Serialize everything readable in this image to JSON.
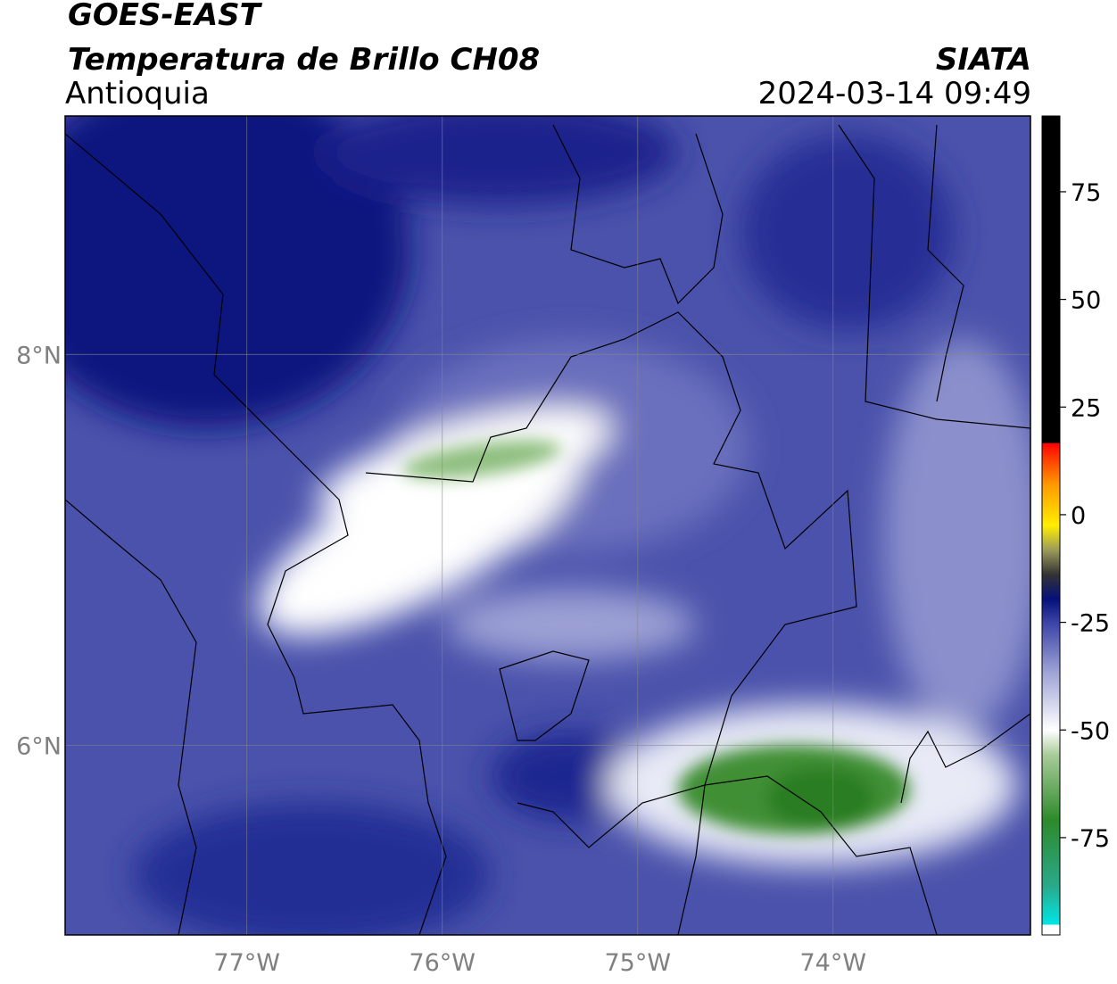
{
  "header": {
    "title": "GOES-EAST",
    "subtitle": "Temperatura de Brillo CH08",
    "region": "Antioquia",
    "source": "SIATA",
    "datetime": "2024-03-14 09:49"
  },
  "map": {
    "lon_range": [
      -77.93,
      -72.99
    ],
    "lat_range": [
      5.03,
      9.22
    ],
    "lon_ticks": [
      {
        "value": -77,
        "label": "77°W"
      },
      {
        "value": -76,
        "label": "76°W"
      },
      {
        "value": -75,
        "label": "75°W"
      },
      {
        "value": -74,
        "label": "74°W"
      }
    ],
    "lat_ticks": [
      {
        "value": 8,
        "label": "8°N"
      },
      {
        "value": 6,
        "label": "6°N"
      }
    ]
  },
  "colorbar": {
    "range": [
      -97.6,
      92.6
    ],
    "ticks": [
      75,
      50,
      25,
      0,
      -25,
      -50,
      -75
    ]
  }
}
